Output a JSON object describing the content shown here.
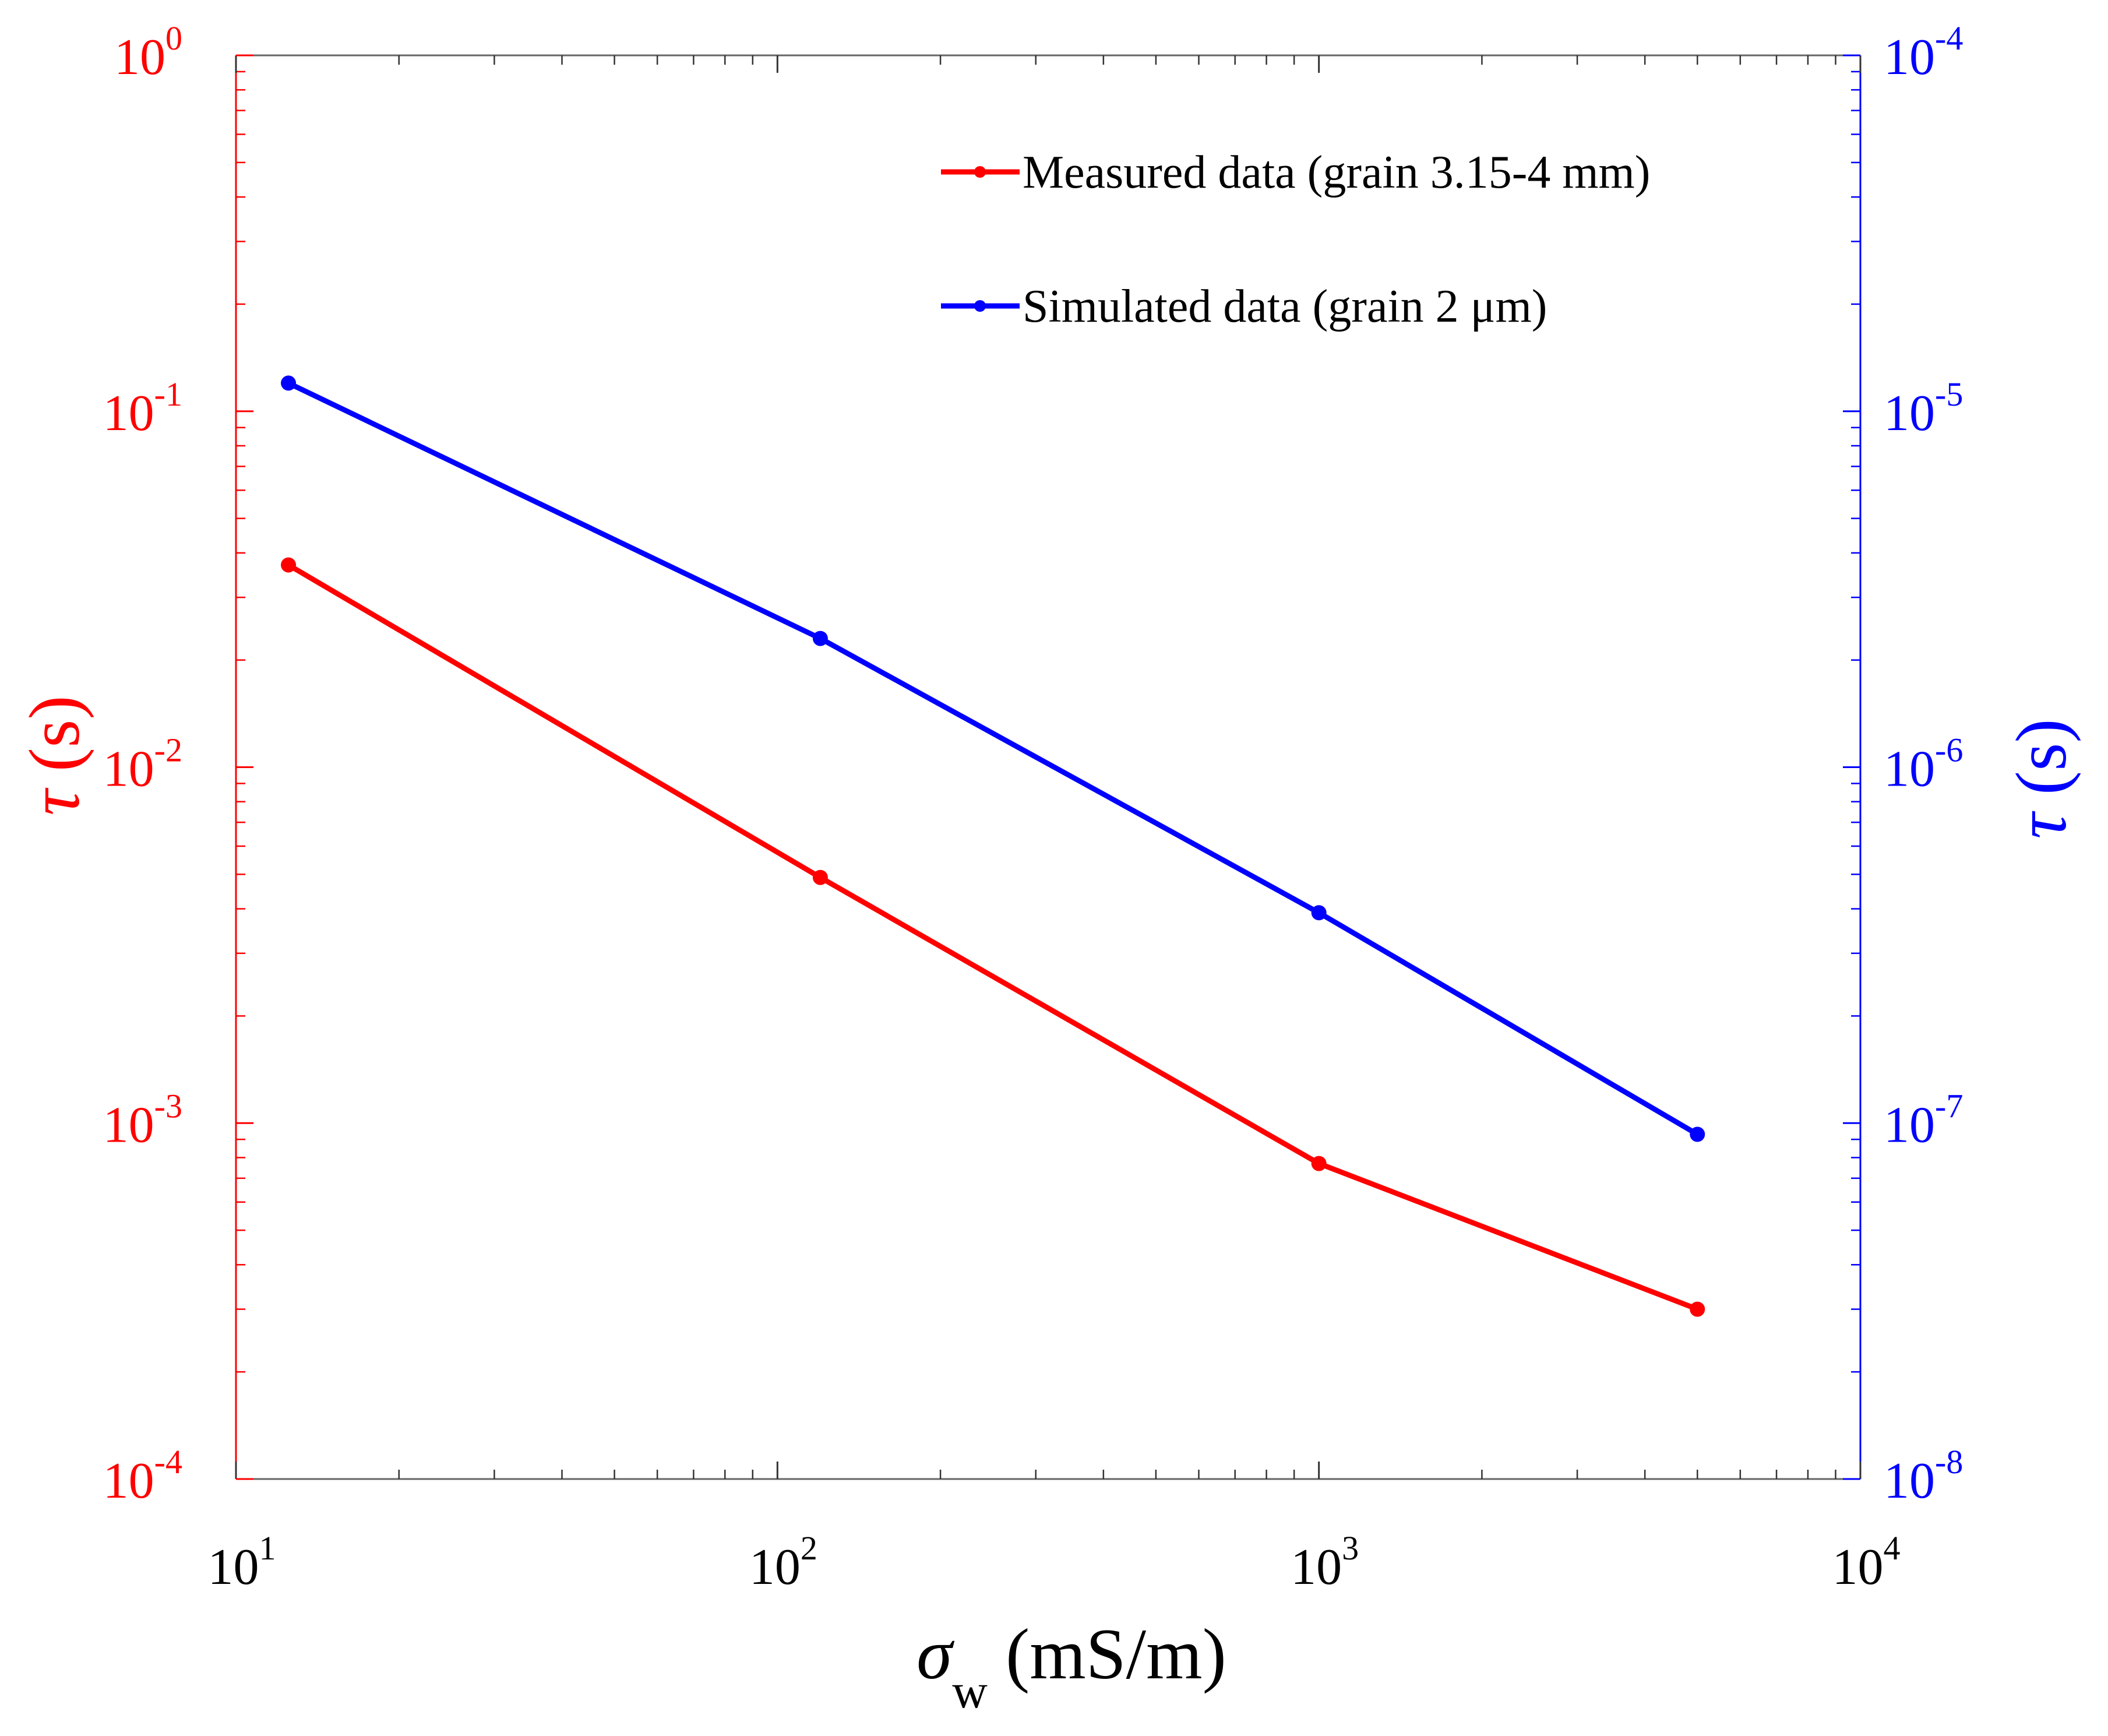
{
  "chart_data": {
    "type": "line",
    "x_scale": "log",
    "xlim": [
      10,
      10000
    ],
    "left_ylim": [
      0.0001,
      1
    ],
    "right_ylim": [
      1e-08,
      0.0001
    ],
    "x_ticks": [
      {
        "value": 10,
        "base": "10",
        "exp": "1"
      },
      {
        "value": 100,
        "base": "10",
        "exp": "2"
      },
      {
        "value": 1000,
        "base": "10",
        "exp": "3"
      },
      {
        "value": 10000,
        "base": "10",
        "exp": "4"
      }
    ],
    "left_ticks": [
      {
        "value": 1,
        "base": "10",
        "exp": "0"
      },
      {
        "value": 0.1,
        "base": "10",
        "exp": "-1"
      },
      {
        "value": 0.01,
        "base": "10",
        "exp": "-2"
      },
      {
        "value": 0.001,
        "base": "10",
        "exp": "-3"
      },
      {
        "value": 0.0001,
        "base": "10",
        "exp": "-4"
      }
    ],
    "right_ticks": [
      {
        "value": 0.0001,
        "base": "10",
        "exp": "-4"
      },
      {
        "value": 1e-05,
        "base": "10",
        "exp": "-5"
      },
      {
        "value": 1e-06,
        "base": "10",
        "exp": "-6"
      },
      {
        "value": 1e-07,
        "base": "10",
        "exp": "-7"
      },
      {
        "value": 1e-08,
        "base": "10",
        "exp": "-8"
      }
    ],
    "xlabel": {
      "symbol": "σ",
      "sub": "w",
      "unit": " (mS/m)"
    },
    "ylabel_left": {
      "symbol": "τ",
      "unit": " (s)"
    },
    "ylabel_right": {
      "symbol": "τ",
      "unit": " (s)"
    },
    "series": [
      {
        "name": "Measured data (grain 3.15-4 mm)",
        "axis": "left",
        "color": "#ff0000",
        "x": [
          12.5,
          120,
          1000,
          5000
        ],
        "y": [
          0.037,
          0.0049,
          0.00077,
          0.0003
        ]
      },
      {
        "name": "Simulated data (grain 2 μm)",
        "axis": "right",
        "color": "#0000ff",
        "x": [
          12.5,
          120,
          1000,
          5000
        ],
        "y": [
          1.2e-05,
          2.3e-06,
          3.9e-07,
          9.3e-08
        ]
      }
    ],
    "legend_location": "top-right",
    "left_axis_color": "#ff0000",
    "right_axis_color": "#0000ff",
    "grid": false
  }
}
